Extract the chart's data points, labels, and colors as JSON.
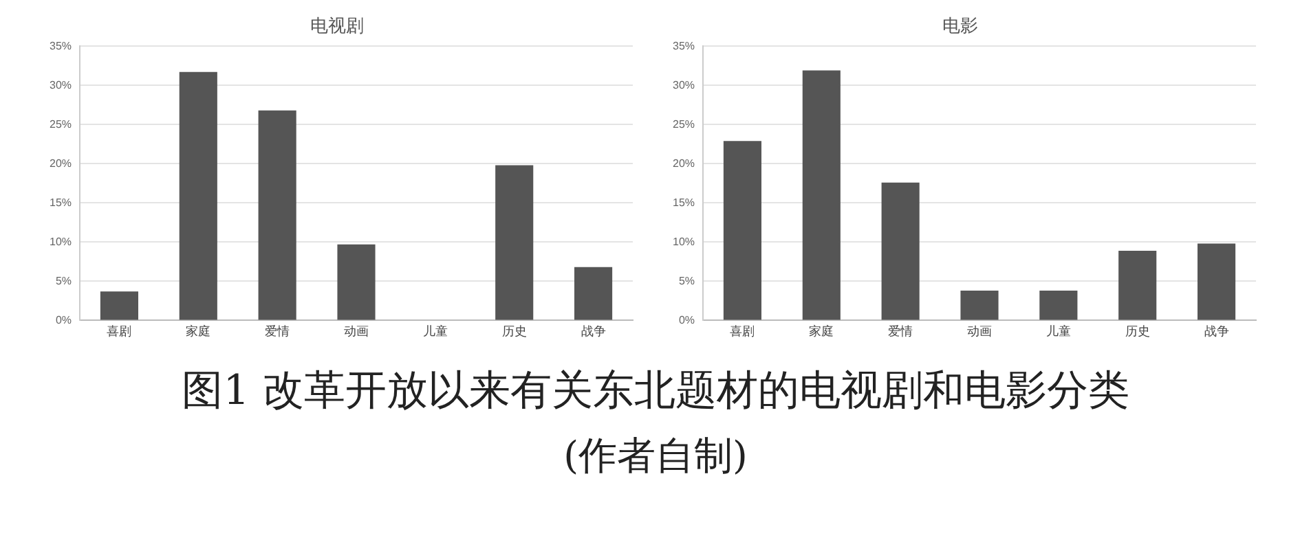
{
  "chart_data": [
    {
      "type": "bar",
      "title": "电视剧",
      "categories": [
        "喜剧",
        "家庭",
        "爱情",
        "动画",
        "儿童",
        "历史",
        "战争"
      ],
      "values": [
        3.7,
        31.7,
        26.8,
        9.7,
        0,
        19.8,
        6.8
      ],
      "color": "#555555",
      "ylim": [
        0,
        35
      ],
      "yticks": [
        {
          "value": 0,
          "label": "0%"
        },
        {
          "value": 5,
          "label": "5%"
        },
        {
          "value": 10,
          "label": "10%"
        },
        {
          "value": 15,
          "label": "15%"
        },
        {
          "value": 20,
          "label": "20%"
        },
        {
          "value": 25,
          "label": "25%"
        },
        {
          "value": 30,
          "label": "30%"
        },
        {
          "value": 35,
          "label": "35%"
        }
      ],
      "grid": "y",
      "legend": false,
      "annotations": [
        "图1 改革开放以来有关东北题材的电视剧和电影分类",
        "(作者自制)"
      ]
    },
    {
      "type": "bar",
      "title": "电影",
      "categories": [
        "喜剧",
        "家庭",
        "爱情",
        "动画",
        "儿童",
        "历史",
        "战争"
      ],
      "values": [
        22.9,
        31.9,
        17.6,
        3.8,
        3.8,
        8.9,
        9.8
      ],
      "color": "#555555",
      "ylim": [
        0,
        35
      ],
      "yticks": [
        {
          "value": 0,
          "label": "0%"
        },
        {
          "value": 5,
          "label": "5%"
        },
        {
          "value": 10,
          "label": "10%"
        },
        {
          "value": 15,
          "label": "15%"
        },
        {
          "value": 20,
          "label": "20%"
        },
        {
          "value": 25,
          "label": "25%"
        },
        {
          "value": 30,
          "label": "30%"
        },
        {
          "value": 35,
          "label": "35%"
        }
      ],
      "grid": "y",
      "legend": false
    }
  ]
}
